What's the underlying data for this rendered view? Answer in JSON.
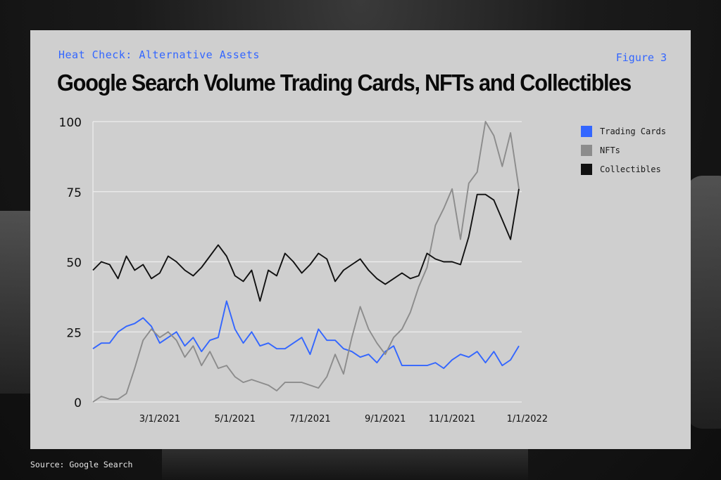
{
  "header": {
    "kicker": "Heat Check: Alternative Assets",
    "figure": "Figure 3",
    "title": "Google Search Volume Trading Cards, NFTs and Collectibles"
  },
  "footer": {
    "source": "Source: Google Search"
  },
  "colors": {
    "card_bg": "#cfcfcf",
    "accent": "#3366ff"
  },
  "chart_data": {
    "type": "line",
    "title": "Google Search Volume Trading Cards, NFTs and Collectibles",
    "xlabel": "",
    "ylabel": "",
    "ylim": [
      0,
      100
    ],
    "y_ticks": [
      0,
      25,
      50,
      75,
      100
    ],
    "x_tick_labels": [
      "3/1/2021",
      "5/1/2021",
      "7/1/2021",
      "9/1/2021",
      "11/1/2021",
      "1/1/2022"
    ],
    "x_tick_index": [
      8,
      17,
      26,
      35,
      43,
      52
    ],
    "grid": "horizontal",
    "legend_position": "right",
    "x_start": "1/3/2021",
    "x_interval": "weekly",
    "series": [
      {
        "name": "Trading Cards",
        "color": "#3366ff",
        "values": [
          19,
          21,
          21,
          25,
          27,
          28,
          30,
          27,
          21,
          23,
          25,
          20,
          23,
          18,
          22,
          23,
          36,
          26,
          21,
          25,
          20,
          21,
          19,
          19,
          21,
          23,
          17,
          26,
          22,
          22,
          19,
          18,
          16,
          17,
          14,
          18,
          20,
          13,
          13,
          13,
          13,
          14,
          12,
          15,
          17,
          16,
          18,
          14,
          18,
          13,
          15,
          20
        ]
      },
      {
        "name": "NFTs",
        "color": "#8c8c8c",
        "values": [
          0,
          2,
          1,
          1,
          3,
          12,
          22,
          26,
          23,
          25,
          22,
          16,
          20,
          13,
          18,
          12,
          13,
          9,
          7,
          8,
          7,
          6,
          4,
          7,
          7,
          7,
          6,
          5,
          9,
          17,
          10,
          23,
          34,
          26,
          21,
          17,
          23,
          26,
          32,
          41,
          48,
          63,
          69,
          76,
          58,
          78,
          82,
          100,
          95,
          84,
          96,
          76
        ]
      },
      {
        "name": "Collectibles",
        "color": "#111111",
        "values": [
          47,
          50,
          49,
          44,
          52,
          47,
          49,
          44,
          46,
          52,
          50,
          47,
          45,
          48,
          52,
          56,
          52,
          45,
          43,
          47,
          36,
          47,
          45,
          53,
          50,
          46,
          49,
          53,
          51,
          43,
          47,
          49,
          51,
          47,
          44,
          42,
          44,
          46,
          44,
          45,
          53,
          51,
          50,
          50,
          49,
          59,
          74,
          74,
          72,
          65,
          58,
          76
        ]
      }
    ]
  }
}
